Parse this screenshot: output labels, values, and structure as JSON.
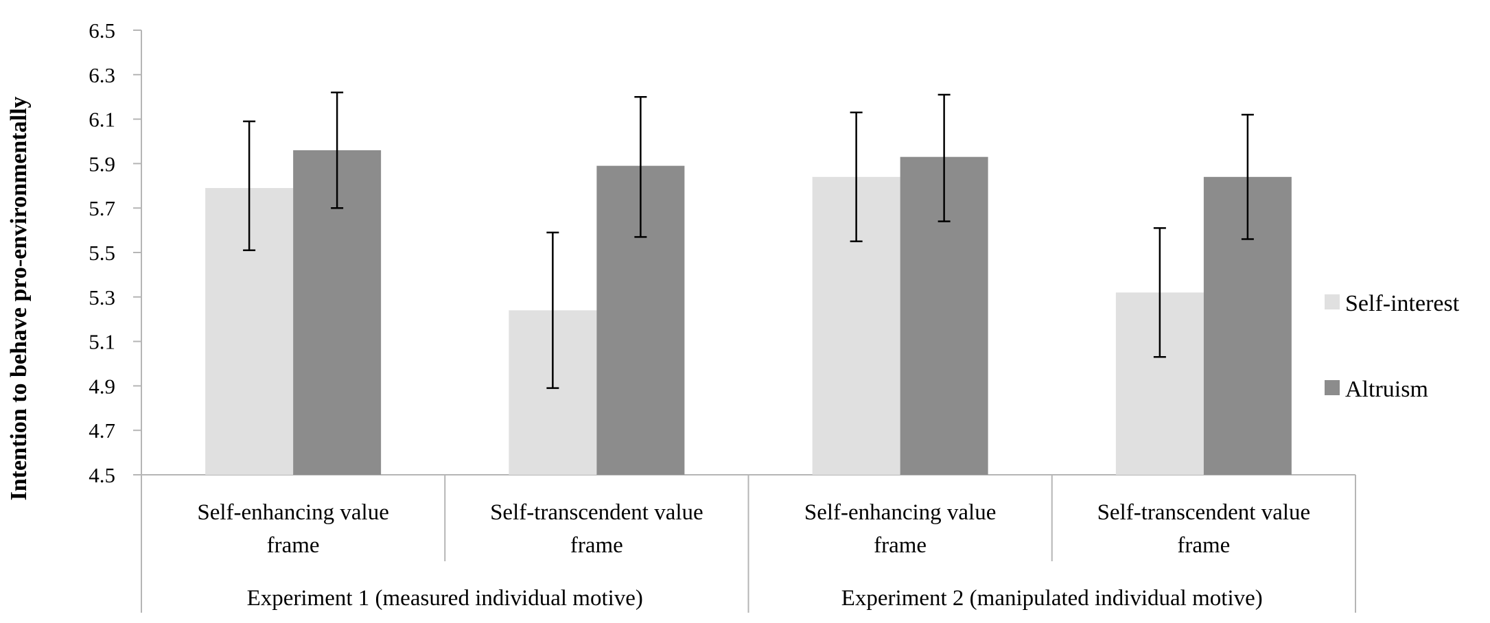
{
  "chart_data": {
    "type": "bar",
    "title": "",
    "ylabel": "Intention to behave pro-environmentally",
    "xlabel": "",
    "ylim": [
      4.5,
      6.5
    ],
    "yticks": [
      "4.5",
      "4.7",
      "4.9",
      "5.1",
      "5.3",
      "5.5",
      "5.7",
      "5.9",
      "6.1",
      "6.3",
      "6.5"
    ],
    "grid": false,
    "legend_position": "right",
    "categories": [
      {
        "line1": "Self-enhancing value",
        "line2": "frame"
      },
      {
        "line1": "Self-transcendent value",
        "line2": "frame"
      },
      {
        "line1": "Self-enhancing value",
        "line2": "frame"
      },
      {
        "line1": "Self-transcendent value",
        "line2": "frame"
      }
    ],
    "groups": [
      {
        "label": "Experiment 1 (measured individual motive)",
        "categories": [
          0,
          1
        ]
      },
      {
        "label": "Experiment 2 (manipulated individual motive)",
        "categories": [
          2,
          3
        ]
      }
    ],
    "series": [
      {
        "name": "Self-interest",
        "color": "#e0e0e0",
        "values": [
          5.79,
          5.24,
          5.84,
          5.32
        ],
        "err_low": [
          5.51,
          4.89,
          5.55,
          5.03
        ],
        "err_high": [
          6.09,
          5.59,
          6.13,
          5.61
        ]
      },
      {
        "name": "Altruism",
        "color": "#8c8c8c",
        "values": [
          5.96,
          5.89,
          5.93,
          5.84
        ],
        "err_low": [
          5.7,
          5.57,
          5.64,
          5.56
        ],
        "err_high": [
          6.22,
          6.2,
          6.21,
          6.12
        ]
      }
    ]
  }
}
